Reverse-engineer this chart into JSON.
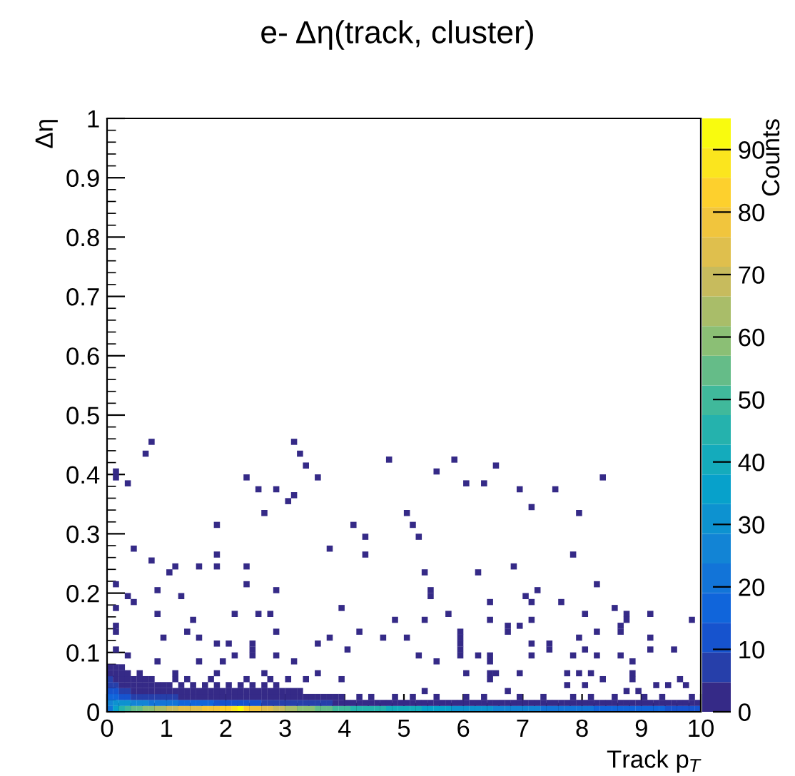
{
  "chart_data": {
    "type": "scatter",
    "title": "e- Δη(track, cluster)",
    "xlabel": "Track p$_{T}$",
    "ylabel": "Δη",
    "clabel": "Counts",
    "xlim": [
      0,
      10
    ],
    "ylim": [
      0,
      1
    ],
    "xticks": [
      0,
      1,
      2,
      3,
      4,
      5,
      6,
      7,
      8,
      9,
      10
    ],
    "yticks": [
      0,
      0.1,
      0.2,
      0.3,
      0.4,
      0.5,
      0.6,
      0.7,
      0.8,
      0.9,
      1
    ],
    "clim": [
      0,
      95
    ],
    "cticks": [
      0,
      10,
      20,
      30,
      40,
      50,
      60,
      70,
      80,
      90
    ],
    "marker": "square",
    "grid": false,
    "x": [
      0.05,
      0.15,
      0.25,
      0.35,
      0.45,
      0.55,
      0.65,
      0.75,
      0.85,
      0.95,
      1.05,
      1.15,
      1.25,
      1.35,
      1.45,
      1.55,
      1.65,
      1.75,
      1.85,
      1.95,
      2.05,
      2.15,
      2.25,
      2.35,
      2.45,
      2.55,
      2.65,
      2.75,
      2.85,
      2.95,
      3.05,
      3.15,
      3.25,
      3.35,
      3.45,
      3.55,
      3.65,
      3.75,
      3.85,
      3.95,
      4.05,
      4.15,
      4.25,
      4.35,
      4.45,
      4.55,
      4.65,
      4.75,
      4.85,
      4.95,
      5.05,
      5.15,
      5.25,
      5.35,
      5.45,
      5.55,
      5.65,
      5.75,
      5.85,
      5.95,
      6.05,
      6.15,
      6.25,
      6.35,
      6.45,
      6.55,
      6.65,
      6.75,
      6.85,
      6.95,
      7.05,
      7.15,
      7.25,
      7.35,
      7.45,
      7.55,
      7.65,
      7.75,
      7.85,
      7.95,
      8.05,
      8.15,
      8.25,
      8.35,
      8.45,
      8.55,
      8.65,
      8.75,
      8.85,
      8.95,
      9.05,
      9.15,
      9.25,
      9.35,
      9.45,
      9.55,
      9.65,
      9.75,
      9.85,
      9.95,
      0.05,
      0.15,
      0.25,
      0.35,
      0.45,
      0.55,
      0.65,
      0.75,
      0.85,
      0.95,
      1.05,
      1.15,
      1.25,
      1.35,
      1.45,
      1.55,
      1.65,
      1.75,
      1.85,
      1.95,
      2.05,
      2.15,
      2.25,
      2.35,
      2.45,
      2.55,
      2.65,
      2.75,
      2.85,
      2.95,
      3.05,
      3.15,
      3.25,
      3.35,
      3.45,
      3.55,
      3.65,
      3.75,
      3.85,
      3.95,
      4.05,
      4.15,
      4.25,
      4.35,
      4.45,
      4.55,
      4.65,
      4.75,
      4.85,
      4.95,
      5.05,
      5.15,
      5.25,
      5.35,
      5.45,
      5.55,
      5.65,
      5.75,
      5.85,
      5.95,
      6.05,
      6.15,
      6.25,
      6.35,
      6.45,
      6.55,
      6.65,
      6.75,
      6.85,
      6.95,
      7.05,
      7.15,
      7.25,
      7.35,
      7.45,
      7.55,
      7.65,
      7.75,
      7.85,
      7.95,
      8.05,
      8.15,
      8.25,
      8.35,
      8.45,
      8.55,
      8.65,
      8.75,
      8.85,
      8.95,
      9.05,
      9.15,
      9.25,
      9.35,
      9.45,
      9.55,
      9.65,
      9.75,
      9.85,
      9.95,
      0.05,
      0.15,
      0.25,
      0.35,
      0.45,
      0.55,
      0.65,
      0.75,
      0.85,
      0.95,
      1.05,
      1.15,
      1.25,
      1.35,
      1.45,
      1.55,
      1.65,
      1.75,
      1.85,
      1.95,
      2.05,
      2.15,
      2.25,
      2.35,
      2.45,
      2.55,
      2.65,
      2.75,
      2.85,
      2.95,
      3.05,
      3.15,
      3.25,
      3.35,
      3.45,
      3.55,
      3.65,
      3.75,
      3.85,
      3.95,
      4.25,
      4.45,
      4.85,
      5.15,
      5.55,
      6.05,
      6.35,
      6.95,
      7.35,
      7.85,
      8.15,
      8.55,
      9.05,
      9.35,
      9.85,
      0.05,
      0.15,
      0.25,
      0.35,
      0.45,
      0.55,
      0.65,
      0.75,
      0.85,
      0.95,
      1.05,
      1.15,
      1.25,
      1.35,
      1.45,
      1.55,
      1.65,
      1.75,
      1.85,
      1.95,
      2.05,
      2.15,
      2.25,
      2.35,
      2.45,
      2.55,
      2.65,
      2.75,
      2.85,
      2.95,
      3.05,
      3.15,
      3.25,
      0.05,
      0.15,
      0.25,
      0.35,
      0.45,
      0.55,
      0.65,
      0.75,
      0.85,
      0.95,
      1.05,
      1.25,
      1.45,
      1.65,
      1.85,
      2.05,
      2.25,
      2.45,
      2.65,
      2.85,
      0.05,
      0.15,
      0.25,
      0.35,
      0.45,
      0.55,
      0.65,
      0.75,
      1.15,
      1.35,
      1.75,
      2.35,
      2.75,
      3.05,
      0.05,
      0.15,
      0.25,
      0.35,
      0.55,
      1.15,
      1.85,
      2.65,
      0.05,
      0.15,
      0.25,
      0.15,
      0.15,
      0.35,
      0.65,
      0.75,
      0.45,
      0.75,
      0.15,
      0.35,
      0.45,
      0.15,
      0.85,
      0.85,
      1.05,
      1.15,
      1.25,
      1.55,
      1.85,
      1.85,
      1.85,
      2.35,
      2.55,
      2.65,
      2.85,
      2.35,
      2.35,
      2.85,
      2.55,
      2.75,
      2.15,
      3.05,
      3.15,
      3.15,
      3.25,
      3.35,
      3.55,
      3.75,
      3.95,
      4.15,
      4.35,
      4.35,
      4.75,
      5.05,
      5.15,
      5.25,
      5.35,
      5.45,
      5.45,
      5.55,
      5.75,
      5.85,
      6.05,
      6.25,
      6.35,
      6.45,
      6.55,
      6.85,
      6.95,
      7.05,
      7.15,
      7.15,
      7.25,
      7.55,
      7.65,
      7.85,
      7.95,
      8.05,
      8.25,
      8.35,
      8.55,
      8.75,
      9.15,
      9.85,
      1.45,
      4.85,
      5.35,
      6.45,
      7.15,
      8.75,
      0.15,
      0.15,
      0.95,
      1.35,
      1.55,
      1.85,
      2.05,
      2.45,
      2.85,
      3.55,
      3.75,
      4.25,
      4.65,
      5.05,
      5.95,
      5.95,
      5.95,
      6.75,
      6.75,
      6.95,
      7.15,
      7.45,
      7.95,
      8.25,
      8.65,
      8.65,
      9.15,
      9.15,
      0.15,
      0.35,
      0.85,
      1.55,
      1.95,
      2.15,
      2.45,
      2.45,
      2.85,
      3.15,
      4.05,
      5.25,
      5.55,
      5.95,
      5.95,
      6.25,
      6.45,
      6.45,
      7.15,
      7.45,
      7.85,
      8.05,
      8.25,
      8.65,
      8.85,
      9.55,
      6.05,
      6.45,
      6.45,
      6.55,
      6.95,
      7.75,
      7.95,
      8.15,
      8.35,
      8.85,
      8.85,
      9.65,
      7.75,
      8.05,
      8.75,
      8.95,
      9.25,
      9.45,
      9.75,
      5.35,
      6.75,
      3.95,
      3.55,
      3.35
    ],
    "values": [
      0.005,
      0.005,
      0.005,
      0.005,
      0.005,
      0.005,
      0.005,
      0.005,
      0.005,
      0.005,
      0.005,
      0.005,
      0.005,
      0.005,
      0.005,
      0.005,
      0.005,
      0.005,
      0.005,
      0.005,
      0.005,
      0.005,
      0.005,
      0.005,
      0.005,
      0.005,
      0.005,
      0.005,
      0.005,
      0.005,
      0.005,
      0.005,
      0.005,
      0.005,
      0.005,
      0.005,
      0.005,
      0.005,
      0.005,
      0.005,
      0.005,
      0.005,
      0.005,
      0.005,
      0.005,
      0.005,
      0.005,
      0.005,
      0.005,
      0.005,
      0.005,
      0.005,
      0.005,
      0.005,
      0.005,
      0.005,
      0.005,
      0.005,
      0.005,
      0.005,
      0.005,
      0.005,
      0.005,
      0.005,
      0.005,
      0.005,
      0.005,
      0.005,
      0.005,
      0.005,
      0.005,
      0.005,
      0.005,
      0.005,
      0.005,
      0.005,
      0.005,
      0.005,
      0.005,
      0.005,
      0.005,
      0.005,
      0.005,
      0.005,
      0.005,
      0.005,
      0.005,
      0.005,
      0.005,
      0.005,
      0.005,
      0.005,
      0.005,
      0.005,
      0.005,
      0.005,
      0.005,
      0.005,
      0.005,
      0.005,
      0.015,
      0.015,
      0.015,
      0.015,
      0.015,
      0.015,
      0.015,
      0.015,
      0.015,
      0.015,
      0.015,
      0.015,
      0.015,
      0.015,
      0.015,
      0.015,
      0.015,
      0.015,
      0.015,
      0.015,
      0.015,
      0.015,
      0.015,
      0.015,
      0.015,
      0.015,
      0.015,
      0.015,
      0.015,
      0.015,
      0.015,
      0.015,
      0.015,
      0.015,
      0.015,
      0.015,
      0.015,
      0.015,
      0.015,
      0.015,
      0.015,
      0.015,
      0.015,
      0.015,
      0.015,
      0.015,
      0.015,
      0.015,
      0.015,
      0.015,
      0.015,
      0.015,
      0.015,
      0.015,
      0.015,
      0.015,
      0.015,
      0.015,
      0.015,
      0.015,
      0.015,
      0.015,
      0.015,
      0.015,
      0.015,
      0.015,
      0.015,
      0.015,
      0.015,
      0.015,
      0.015,
      0.015,
      0.015,
      0.015,
      0.015,
      0.015,
      0.015,
      0.015,
      0.015,
      0.015,
      0.015,
      0.015,
      0.015,
      0.015,
      0.015,
      0.015,
      0.015,
      0.015,
      0.015,
      0.015,
      0.015,
      0.015,
      0.015,
      0.015,
      0.015,
      0.015,
      0.015,
      0.015,
      0.015,
      0.015,
      0.025,
      0.025,
      0.025,
      0.025,
      0.025,
      0.025,
      0.025,
      0.025,
      0.025,
      0.025,
      0.025,
      0.025,
      0.025,
      0.025,
      0.025,
      0.025,
      0.025,
      0.025,
      0.025,
      0.025,
      0.025,
      0.025,
      0.025,
      0.025,
      0.025,
      0.025,
      0.025,
      0.025,
      0.025,
      0.025,
      0.025,
      0.025,
      0.025,
      0.025,
      0.025,
      0.025,
      0.025,
      0.025,
      0.025,
      0.025,
      0.025,
      0.025,
      0.025,
      0.025,
      0.025,
      0.025,
      0.025,
      0.025,
      0.025,
      0.025,
      0.025,
      0.025,
      0.025,
      0.025,
      0.025,
      0.035,
      0.035,
      0.035,
      0.035,
      0.035,
      0.035,
      0.035,
      0.035,
      0.035,
      0.035,
      0.035,
      0.035,
      0.035,
      0.035,
      0.035,
      0.035,
      0.035,
      0.035,
      0.035,
      0.035,
      0.035,
      0.035,
      0.035,
      0.035,
      0.035,
      0.035,
      0.035,
      0.035,
      0.035,
      0.035,
      0.035,
      0.035,
      0.035,
      0.045,
      0.045,
      0.045,
      0.045,
      0.045,
      0.045,
      0.045,
      0.045,
      0.045,
      0.045,
      0.045,
      0.045,
      0.045,
      0.045,
      0.045,
      0.045,
      0.045,
      0.045,
      0.045,
      0.045,
      0.055,
      0.055,
      0.055,
      0.055,
      0.055,
      0.055,
      0.055,
      0.055,
      0.055,
      0.055,
      0.055,
      0.055,
      0.055,
      0.055,
      0.065,
      0.065,
      0.065,
      0.065,
      0.065,
      0.065,
      0.065,
      0.065,
      0.075,
      0.075,
      0.075,
      0.405,
      0.395,
      0.385,
      0.435,
      0.455,
      0.275,
      0.255,
      0.215,
      0.195,
      0.185,
      0.175,
      0.205,
      0.165,
      0.235,
      0.245,
      0.195,
      0.245,
      0.315,
      0.265,
      0.245,
      0.395,
      0.375,
      0.335,
      0.375,
      0.245,
      0.215,
      0.205,
      0.165,
      0.165,
      0.165,
      0.355,
      0.365,
      0.455,
      0.435,
      0.415,
      0.395,
      0.275,
      0.175,
      0.315,
      0.295,
      0.265,
      0.425,
      0.335,
      0.315,
      0.295,
      0.235,
      0.205,
      0.195,
      0.405,
      0.165,
      0.425,
      0.385,
      0.235,
      0.385,
      0.185,
      0.415,
      0.245,
      0.375,
      0.195,
      0.345,
      0.185,
      0.205,
      0.375,
      0.185,
      0.265,
      0.335,
      0.165,
      0.215,
      0.395,
      0.175,
      0.165,
      0.165,
      0.155,
      0.155,
      0.155,
      0.155,
      0.155,
      0.155,
      0.155,
      0.145,
      0.135,
      0.125,
      0.135,
      0.125,
      0.115,
      0.115,
      0.115,
      0.135,
      0.115,
      0.125,
      0.135,
      0.125,
      0.125,
      0.125,
      0.135,
      0.115,
      0.145,
      0.135,
      0.145,
      0.115,
      0.115,
      0.125,
      0.135,
      0.145,
      0.135,
      0.125,
      0.105,
      0.105,
      0.095,
      0.085,
      0.085,
      0.085,
      0.095,
      0.105,
      0.095,
      0.095,
      0.085,
      0.105,
      0.095,
      0.085,
      0.105,
      0.095,
      0.095,
      0.095,
      0.085,
      0.095,
      0.105,
      0.095,
      0.105,
      0.095,
      0.095,
      0.085,
      0.105,
      0.065,
      0.065,
      0.055,
      0.065,
      0.065,
      0.065,
      0.065,
      0.065,
      0.055,
      0.065,
      0.055,
      0.055,
      0.045,
      0.045,
      0.035,
      0.035,
      0.045,
      0.045,
      0.045,
      0.035,
      0.035,
      0.055,
      0.065,
      0.055
    ],
    "cvalues": [
      20,
      35,
      45,
      50,
      55,
      55,
      60,
      60,
      65,
      65,
      70,
      70,
      75,
      75,
      75,
      75,
      80,
      80,
      80,
      85,
      85,
      90,
      92,
      85,
      80,
      80,
      75,
      75,
      70,
      70,
      65,
      65,
      60,
      60,
      60,
      55,
      55,
      55,
      50,
      50,
      50,
      45,
      45,
      45,
      45,
      45,
      45,
      40,
      40,
      40,
      40,
      40,
      40,
      35,
      35,
      35,
      35,
      35,
      30,
      30,
      30,
      30,
      30,
      30,
      30,
      25,
      25,
      25,
      25,
      25,
      25,
      25,
      25,
      20,
      20,
      20,
      20,
      20,
      20,
      20,
      20,
      20,
      15,
      15,
      15,
      15,
      15,
      15,
      15,
      15,
      15,
      15,
      15,
      15,
      10,
      10,
      10,
      10,
      10,
      10,
      25,
      30,
      30,
      30,
      28,
      25,
      25,
      22,
      20,
      20,
      20,
      20,
      18,
      18,
      15,
      15,
      15,
      15,
      12,
      12,
      12,
      12,
      10,
      10,
      10,
      10,
      8,
      8,
      8,
      8,
      8,
      6,
      6,
      6,
      5,
      5,
      5,
      5,
      4,
      4,
      4,
      4,
      3,
      3,
      3,
      3,
      3,
      3,
      3,
      3,
      3,
      3,
      2,
      2,
      3,
      2,
      2,
      3,
      2,
      2,
      2,
      3,
      2,
      2,
      2,
      3,
      2,
      2,
      2,
      2,
      2,
      2,
      3,
      2,
      2,
      2,
      2,
      3,
      2,
      2,
      2,
      2,
      2,
      3,
      2,
      2,
      2,
      2,
      2,
      2,
      3,
      2,
      2,
      2,
      2,
      3,
      2,
      2,
      2,
      3,
      15,
      15,
      12,
      10,
      8,
      8,
      6,
      6,
      5,
      5,
      5,
      5,
      4,
      4,
      4,
      4,
      3,
      3,
      3,
      3,
      3,
      3,
      3,
      3,
      2,
      2,
      2,
      2,
      2,
      2,
      2,
      2,
      2,
      2,
      1,
      1,
      1,
      1,
      1,
      1,
      1,
      1,
      1,
      1,
      1,
      1,
      1,
      1,
      1,
      1,
      1,
      1,
      1,
      1,
      1,
      10,
      10,
      8,
      5,
      4,
      3,
      3,
      3,
      2,
      2,
      2,
      2,
      2,
      1,
      1,
      1,
      1,
      1,
      1,
      1,
      1,
      1,
      1,
      1,
      1,
      1,
      1,
      1,
      1,
      1,
      1,
      1,
      1,
      8,
      6,
      4,
      3,
      2,
      2,
      2,
      1,
      1,
      1,
      1,
      1,
      1,
      1,
      1,
      1,
      1,
      1,
      1,
      1,
      6,
      4,
      3,
      2,
      1,
      1,
      1,
      1,
      1,
      1,
      1,
      1,
      1,
      1,
      4,
      3,
      2,
      1,
      1,
      1,
      1,
      1,
      2,
      2,
      1,
      1,
      1,
      1,
      1,
      1,
      1,
      1,
      1,
      1,
      1,
      1,
      1,
      1,
      1,
      1,
      1,
      1,
      1,
      1,
      1,
      1,
      1,
      1,
      1,
      1,
      1,
      1,
      1,
      1,
      1,
      1,
      1,
      1,
      1,
      1,
      1,
      1,
      1,
      1,
      1,
      1,
      1,
      1,
      1,
      1,
      1,
      1,
      1,
      1,
      1,
      1,
      1,
      1,
      1,
      1,
      1,
      1,
      1,
      1,
      1,
      1,
      1,
      1,
      1,
      1,
      1,
      1,
      1,
      1,
      1,
      1,
      1,
      1,
      1,
      1,
      1,
      1,
      1,
      1,
      1,
      1,
      1,
      1,
      1,
      1,
      1,
      1,
      1,
      1,
      1,
      1,
      1,
      1,
      1,
      1,
      1,
      1,
      1,
      1,
      1,
      1,
      1,
      1,
      1,
      1,
      1,
      1,
      1,
      1,
      1,
      1,
      1,
      1,
      1,
      1,
      1,
      1,
      1,
      1,
      1,
      1,
      1,
      1,
      1,
      1,
      1,
      1,
      1,
      1,
      1,
      1,
      1,
      1,
      1,
      1,
      1,
      1,
      1,
      1,
      1,
      1,
      1,
      1,
      1,
      1,
      1,
      1,
      1,
      1,
      1,
      1,
      1,
      1,
      1,
      1,
      1,
      1
    ]
  }
}
